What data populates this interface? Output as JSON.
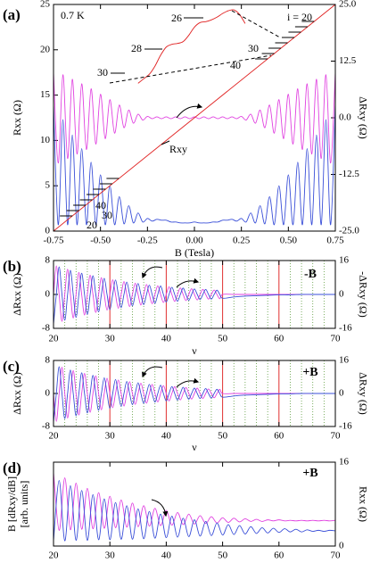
{
  "chart_data": [
    {
      "type": "line",
      "panel_label": "(a)",
      "xlabel": "B (Tesla)",
      "ylabel": "Rxx (Ω)",
      "y2label": "ΔRxy (Ω)",
      "xlim": [
        -0.75,
        0.75
      ],
      "xticks": [
        -0.75,
        {
          "value": -0.5,
          "label": "-0.50"
        },
        -0.25,
        {
          "value": 0,
          "label": "0.00"
        },
        0.25,
        {
          "value": 0.5,
          "label": "0.50"
        },
        0.75
      ],
      "ylim": [
        0,
        25
      ],
      "yticks": [
        0,
        5,
        10,
        15,
        20,
        25
      ],
      "y2lim": [
        -25,
        25
      ],
      "y2ticks": [
        {
          "value": -25,
          "label": "-25.0"
        },
        -12.5,
        {
          "value": 0,
          "label": "0.0"
        },
        12.5,
        {
          "value": 25,
          "label": "25.0"
        }
      ],
      "x": [
        -0.75,
        -0.725,
        -0.7,
        -0.675,
        -0.65,
        -0.625,
        -0.6,
        -0.575,
        -0.55,
        -0.525,
        -0.5,
        -0.475,
        -0.45,
        -0.425,
        -0.4,
        -0.375,
        -0.35,
        -0.325,
        -0.3,
        -0.275,
        -0.25,
        -0.225,
        -0.2,
        -0.175,
        -0.15,
        -0.125,
        -0.1,
        -0.075,
        -0.05,
        -0.025,
        0,
        0.025,
        0.05,
        0.075,
        0.1,
        0.125,
        0.15,
        0.175,
        0.2,
        0.225,
        0.25,
        0.275,
        0.3,
        0.325,
        0.35,
        0.375,
        0.4,
        0.425,
        0.45,
        0.475,
        0.5,
        0.525,
        0.55,
        0.575,
        0.6,
        0.625,
        0.65,
        0.675,
        0.7,
        0.725,
        0.75
      ],
      "series": [
        {
          "color": "#e040e0",
          "axis": "y2",
          "values": [
            10,
            -10,
            9.5,
            -9,
            8.5,
            -8,
            7.5,
            -7,
            6.4,
            -5.8,
            5.2,
            -4.6,
            4.0,
            -3.4,
            2.8,
            -2.2,
            1.7,
            -1.2,
            0.8,
            -0.5,
            0.3,
            -0.2,
            0.2,
            -0.2,
            0.2,
            -0.2,
            0.2,
            -0.2,
            0.2,
            -0.2,
            0.2,
            -0.2,
            0.2,
            -0.2,
            0.2,
            -0.2,
            0.2,
            -0.2,
            0.2,
            -0.2,
            0.3,
            -0.5,
            0.8,
            -1.2,
            1.7,
            -2.2,
            2.8,
            -3.4,
            4.0,
            -4.6,
            5.2,
            -5.8,
            6.4,
            -7,
            7.5,
            -8,
            8.5,
            -9,
            9.5,
            -10,
            10
          ]
        },
        {
          "color": "#3a4fd8",
          "axis": "y",
          "values": [
            14.0,
            0.7,
            12.3,
            0.7,
            10.6,
            0.7,
            9.1,
            0.7,
            7.6,
            0.7,
            6.2,
            0.7,
            5.0,
            0.7,
            3.8,
            0.8,
            2.8,
            0.9,
            2.0,
            1.0,
            1.4,
            1.1,
            1.3,
            1.2,
            1.2,
            1.0,
            1.0,
            0.9,
            0.9,
            0.9,
            1.0,
            0.9,
            0.9,
            0.9,
            1.0,
            1.0,
            1.2,
            1.2,
            1.3,
            1.1,
            1.4,
            1.0,
            2.0,
            0.9,
            2.8,
            0.8,
            3.8,
            0.7,
            5.0,
            0.7,
            6.2,
            0.7,
            7.6,
            0.7,
            9.1,
            0.7,
            10.6,
            0.7,
            12.3,
            0.7,
            14.0
          ]
        },
        {
          "color": "#e02020",
          "axis": "y",
          "x": [
            -0.75,
            0.75
          ],
          "values": [
            0,
            25
          ]
        },
        {
          "color": "#e02020",
          "axis": "y",
          "x": [
            -0.3,
            -0.27,
            -0.24,
            -0.21,
            -0.18,
            -0.15,
            -0.12,
            -0.09,
            -0.06,
            -0.03,
            0,
            0.03,
            0.06,
            0.09,
            0.12,
            0.15,
            0.18,
            0.21,
            0.24,
            0.27
          ],
          "values": [
            16.3,
            16.8,
            17.3,
            18.2,
            19.4,
            20.3,
            20.6,
            20.7,
            20.9,
            21.6,
            22.5,
            23.0,
            23.1,
            23.3,
            23.6,
            24.0,
            24.3,
            24.4,
            23.9,
            22.9
          ]
        }
      ],
      "annotations": [
        "0.7 K",
        "Rxy",
        "26",
        "28",
        "30",
        "i = 20",
        "30",
        "40",
        "40",
        "30",
        "20"
      ]
    },
    {
      "type": "line",
      "panel_label": "(b)",
      "xlabel": "ν",
      "ylabel": "ΔRxx (Ω)",
      "y2label": "-ΔRxy (Ω)",
      "xlim": [
        20,
        70
      ],
      "xticks": [
        20,
        30,
        40,
        50,
        60,
        70
      ],
      "xgrid_major": true,
      "xgrid_minor": [
        22,
        24,
        26,
        28,
        32,
        34,
        36,
        38,
        42,
        44,
        46,
        48,
        52,
        54,
        56,
        58,
        62,
        64,
        66,
        68
      ],
      "ylim": [
        -8,
        8
      ],
      "yticks": [
        -8,
        0,
        8
      ],
      "y2lim": [
        -16,
        16
      ],
      "y2ticks": [
        -16,
        0,
        16
      ],
      "x": [
        20,
        20.5,
        21,
        21.5,
        22,
        22.5,
        23,
        23.5,
        24,
        24.5,
        25,
        25.5,
        26,
        26.5,
        27,
        27.5,
        28,
        28.5,
        29,
        29.5,
        30,
        30.5,
        31,
        31.5,
        32,
        32.5,
        33,
        33.5,
        34,
        34.5,
        35,
        35.5,
        36,
        36.5,
        37,
        37.5,
        38,
        38.5,
        39,
        39.5,
        40,
        40.5,
        41,
        41.5,
        42,
        42.5,
        43,
        43.5,
        44,
        44.5,
        45,
        45.5,
        46,
        46.5,
        47,
        47.5,
        48,
        48.5,
        49,
        49.5,
        50,
        52,
        54,
        56,
        58,
        60,
        62,
        64,
        66,
        68,
        70
      ],
      "series": [
        {
          "color": "#e040e0",
          "axis": "y2",
          "values": [
            0,
            13.5,
            0,
            -12.7,
            0,
            11.9,
            0,
            -11.1,
            0,
            10.4,
            0,
            -9.7,
            0,
            9.1,
            0,
            -8.5,
            0,
            7.9,
            0,
            -7.4,
            0,
            6.9,
            0,
            -6.5,
            0,
            6.1,
            0,
            -5.7,
            0,
            5.3,
            0,
            -5.0,
            0,
            4.7,
            0,
            -4.4,
            0,
            4.1,
            0,
            -3.8,
            0,
            3.6,
            0,
            -3.3,
            0,
            3.1,
            0,
            -2.9,
            0,
            2.7,
            0,
            -2.6,
            0,
            2.4,
            0,
            -2.2,
            0,
            2.1,
            0,
            -2.0,
            0,
            0,
            0,
            0,
            0,
            0,
            0,
            0,
            0,
            0,
            0
          ]
        },
        {
          "color": "#3a4fd8",
          "axis": "y",
          "values": [
            -7.0,
            0,
            6.5,
            0,
            -6.1,
            0,
            5.7,
            0,
            -5.4,
            0,
            5.0,
            0,
            -4.7,
            0,
            4.4,
            0,
            -4.1,
            0,
            3.8,
            0,
            -3.6,
            0,
            3.4,
            0,
            -3.1,
            0,
            2.9,
            0,
            -2.7,
            0,
            2.6,
            0,
            -2.4,
            0,
            2.2,
            0,
            -2.1,
            0,
            2.0,
            0,
            -1.8,
            0,
            1.7,
            0,
            -1.6,
            0,
            1.5,
            0,
            -1.4,
            0,
            1.3,
            0,
            -1.2,
            0,
            1.2,
            0,
            -1.1,
            0,
            1.0,
            0,
            -0.9,
            -0.6,
            -0.4,
            -0.3,
            -0.2,
            -0.1,
            -0.1,
            0,
            0,
            0,
            0
          ]
        }
      ],
      "annotations": [
        "-B"
      ]
    },
    {
      "type": "line",
      "panel_label": "(c)",
      "xlabel": "ν",
      "ylabel": "ΔRxx (Ω)",
      "y2label": "ΔRxy (Ω)",
      "xlim": [
        20,
        70
      ],
      "xticks": [
        20,
        30,
        40,
        50,
        60,
        70
      ],
      "xgrid_major": true,
      "xgrid_minor": [
        22,
        24,
        26,
        28,
        32,
        34,
        36,
        38,
        42,
        44,
        46,
        48,
        52,
        54,
        56,
        58,
        62,
        64,
        66,
        68
      ],
      "ylim": [
        -8,
        8
      ],
      "yticks": [
        -8,
        0,
        8
      ],
      "y2lim": [
        -16,
        16
      ],
      "y2ticks": [
        -16,
        0,
        16
      ],
      "x": [
        20,
        20.5,
        21,
        21.5,
        22,
        22.5,
        23,
        23.5,
        24,
        24.5,
        25,
        25.5,
        26,
        26.5,
        27,
        27.5,
        28,
        28.5,
        29,
        29.5,
        30,
        30.5,
        31,
        31.5,
        32,
        32.5,
        33,
        33.5,
        34,
        34.5,
        35,
        35.5,
        36,
        36.5,
        37,
        37.5,
        38,
        38.5,
        39,
        39.5,
        40,
        40.5,
        41,
        41.5,
        42,
        42.5,
        43,
        43.5,
        44,
        44.5,
        45,
        45.5,
        46,
        46.5,
        47,
        47.5,
        48,
        48.5,
        49,
        49.5,
        50,
        52,
        54,
        56,
        58,
        60,
        62,
        64,
        66,
        68,
        70
      ],
      "series": [
        {
          "color": "#e040e0",
          "axis": "y2",
          "values": [
            0,
            -13.5,
            0,
            12.7,
            0,
            -11.9,
            0,
            11.1,
            0,
            -10.4,
            0,
            9.7,
            0,
            -9.1,
            0,
            8.5,
            0,
            -7.9,
            0,
            7.4,
            0,
            -6.9,
            0,
            6.5,
            0,
            -6.1,
            0,
            5.7,
            0,
            -5.3,
            0,
            5.0,
            0,
            -4.7,
            0,
            4.4,
            0,
            -4.1,
            0,
            3.8,
            0,
            -3.6,
            0,
            3.3,
            0,
            -3.1,
            0,
            2.9,
            0,
            -2.7,
            0,
            2.6,
            0,
            -2.4,
            0,
            2.2,
            0,
            -2.1,
            0,
            2.0,
            0,
            0,
            0,
            0,
            0,
            0,
            0,
            0,
            0,
            0,
            0
          ]
        },
        {
          "color": "#3a4fd8",
          "axis": "y",
          "values": [
            -7.0,
            0,
            6.5,
            0,
            -6.1,
            0,
            5.7,
            0,
            -5.4,
            0,
            5.0,
            0,
            -4.7,
            0,
            4.4,
            0,
            -4.1,
            0,
            3.8,
            0,
            -3.6,
            0,
            3.4,
            0,
            -3.1,
            0,
            2.9,
            0,
            -2.7,
            0,
            2.6,
            0,
            -2.4,
            0,
            2.2,
            0,
            -2.1,
            0,
            2.0,
            0,
            -1.8,
            0,
            1.7,
            0,
            -1.6,
            0,
            1.5,
            0,
            -1.4,
            0,
            1.3,
            0,
            -1.2,
            0,
            1.2,
            0,
            -1.1,
            0,
            1.0,
            0,
            -0.9,
            -0.6,
            -0.4,
            -0.3,
            -0.2,
            -0.1,
            -0.1,
            0,
            0,
            0,
            0
          ]
        }
      ],
      "annotations": [
        "+B"
      ]
    },
    {
      "type": "line",
      "panel_label": "(d)",
      "ylabel": [
        "B [dRxy/dB]",
        "[arb. units]"
      ],
      "y2label": "Rxx (Ω)",
      "xlim": [
        20,
        70
      ],
      "xticks": [
        20,
        30,
        40,
        50,
        60,
        70
      ],
      "ylim": [
        0,
        16
      ],
      "y2lim": [
        0,
        16
      ],
      "y2ticks": [
        0,
        16
      ],
      "x": [
        20,
        21,
        22,
        23,
        24,
        25,
        26,
        27,
        28,
        29,
        30,
        31,
        32,
        33,
        34,
        35,
        36,
        37,
        38,
        39,
        40,
        41,
        42,
        43,
        44,
        45,
        46,
        47,
        48,
        49,
        50,
        51,
        52,
        53,
        54,
        55,
        56,
        57,
        58,
        59,
        60,
        61,
        62,
        63,
        64,
        65,
        66,
        67,
        68,
        69,
        70
      ],
      "series": [
        {
          "color": "#e040e0",
          "axis": "y",
          "values": [
            14.0,
            3.0,
            13.0,
            3.1,
            12.0,
            3.2,
            11.0,
            3.3,
            10.2,
            3.4,
            9.5,
            3.5,
            8.8,
            3.6,
            8.2,
            3.7,
            7.7,
            3.8,
            7.2,
            3.9,
            6.8,
            4.0,
            6.4,
            4.1,
            6.1,
            4.2,
            5.8,
            4.3,
            5.6,
            4.4,
            5.4,
            4.5,
            5.3,
            4.6,
            5.2,
            4.7,
            5.1,
            4.7,
            5.0,
            4.8,
            5.0,
            4.8,
            4.9,
            4.8,
            4.9,
            4.8,
            4.9,
            4.8,
            4.9,
            4.8,
            4.9
          ]
        },
        {
          "color": "#3a4fd8",
          "axis": "y2",
          "values": [
            1.0,
            12.5,
            1.0,
            11.5,
            1.1,
            10.6,
            1.1,
            9.8,
            1.2,
            9.0,
            1.2,
            8.3,
            1.3,
            7.7,
            1.3,
            7.1,
            1.4,
            6.6,
            1.5,
            6.1,
            1.6,
            5.7,
            1.7,
            5.3,
            1.8,
            5.0,
            1.9,
            4.7,
            2.0,
            4.4,
            2.1,
            4.1,
            2.2,
            3.9,
            2.3,
            3.7,
            2.4,
            3.5,
            2.5,
            3.4,
            2.6,
            3.3,
            2.7,
            3.2,
            2.7,
            3.1,
            2.8,
            3.0,
            2.8,
            3.0,
            2.9
          ]
        }
      ],
      "annotations": [
        "+B"
      ]
    }
  ]
}
